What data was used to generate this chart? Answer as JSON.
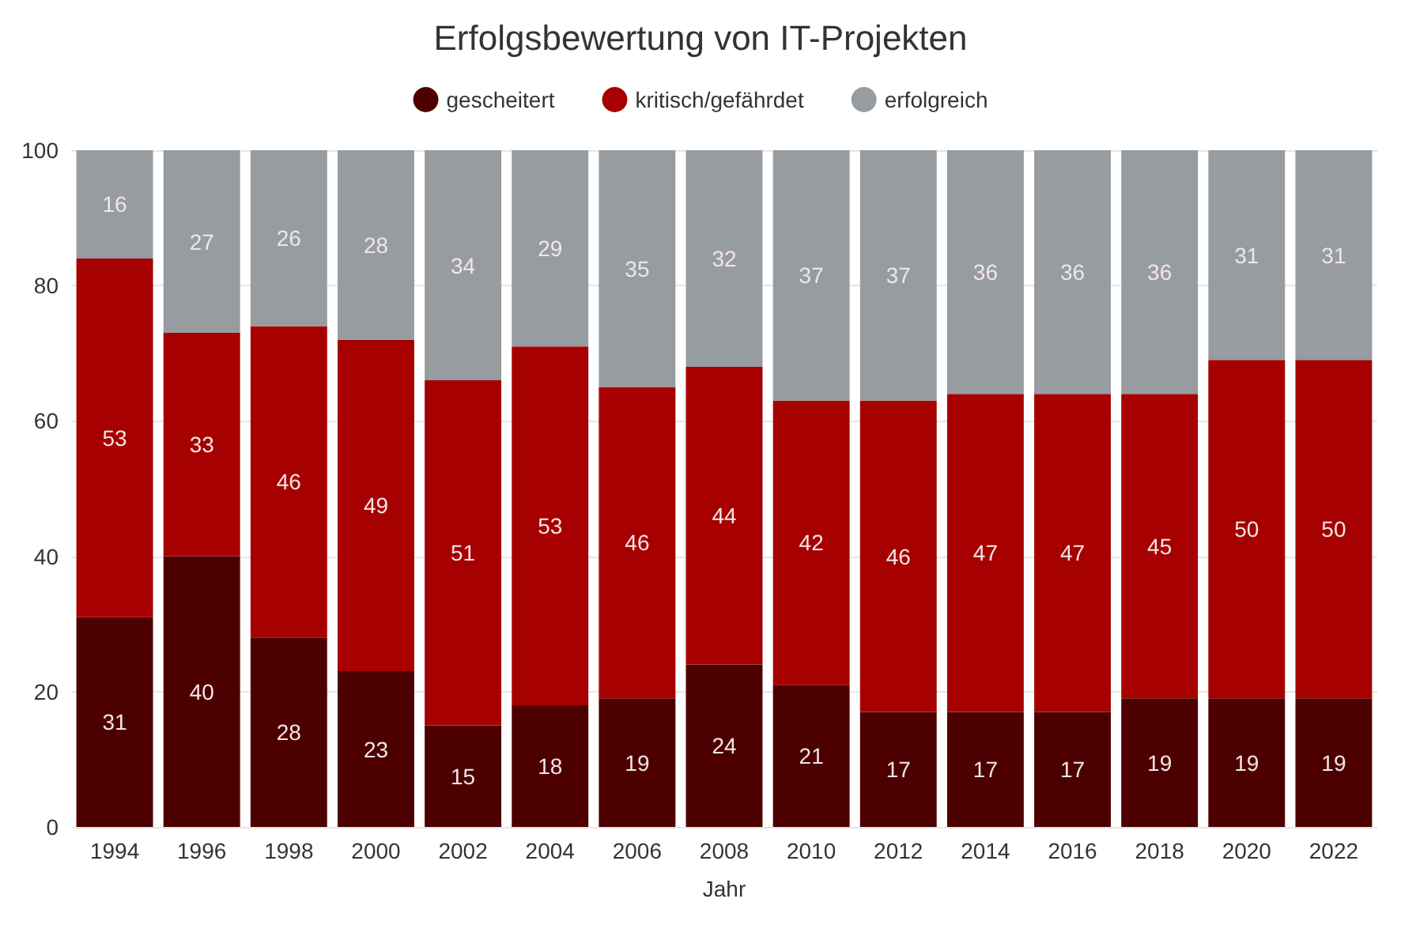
{
  "chart_data": {
    "type": "bar",
    "title": "Erfolgsbewertung von IT-Projekten",
    "xlabel": "Jahr",
    "stacked": true,
    "data_labels": true,
    "grid": "y",
    "legend": "top",
    "categories": [
      "1994",
      "1996",
      "1998",
      "2000",
      "2002",
      "2004",
      "2006",
      "2008",
      "2010",
      "2012",
      "2014",
      "2016",
      "2018",
      "2020",
      "2022"
    ],
    "series": [
      {
        "name": "gescheitert",
        "color": "#4d0000",
        "values": [
          31,
          40,
          28,
          23,
          15,
          18,
          19,
          24,
          21,
          17,
          17,
          17,
          19,
          19,
          19
        ]
      },
      {
        "name": "kritisch/gefährdet",
        "color": "#a60000",
        "values": [
          53,
          33,
          46,
          49,
          51,
          53,
          46,
          44,
          42,
          46,
          47,
          47,
          45,
          50,
          50
        ]
      },
      {
        "name": "erfolgreich",
        "color": "#979ca1",
        "values": [
          16,
          27,
          26,
          28,
          34,
          29,
          35,
          32,
          37,
          37,
          36,
          36,
          36,
          31,
          31
        ]
      }
    ],
    "ylim": [
      0,
      100
    ],
    "yticks": [
      0,
      20,
      40,
      60,
      80,
      100
    ]
  }
}
